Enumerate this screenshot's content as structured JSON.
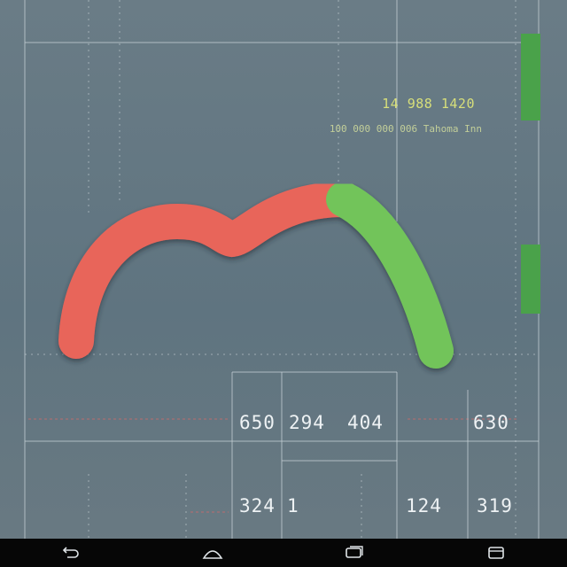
{
  "header": {
    "title": "14 988 1420",
    "subtitle": "100 000 000 006 Tahoma Inn"
  },
  "gauge": {
    "colors": {
      "low": "#e8655a",
      "high": "#72c45a"
    },
    "level": 0.7
  },
  "readouts": {
    "row1": [
      "650",
      "294",
      "404",
      "630"
    ],
    "row2": [
      "324",
      "1",
      "124",
      "319"
    ]
  },
  "system_nav": {
    "icons": [
      "back-icon",
      "home-icon",
      "recents-icon",
      "menu-icon"
    ]
  }
}
